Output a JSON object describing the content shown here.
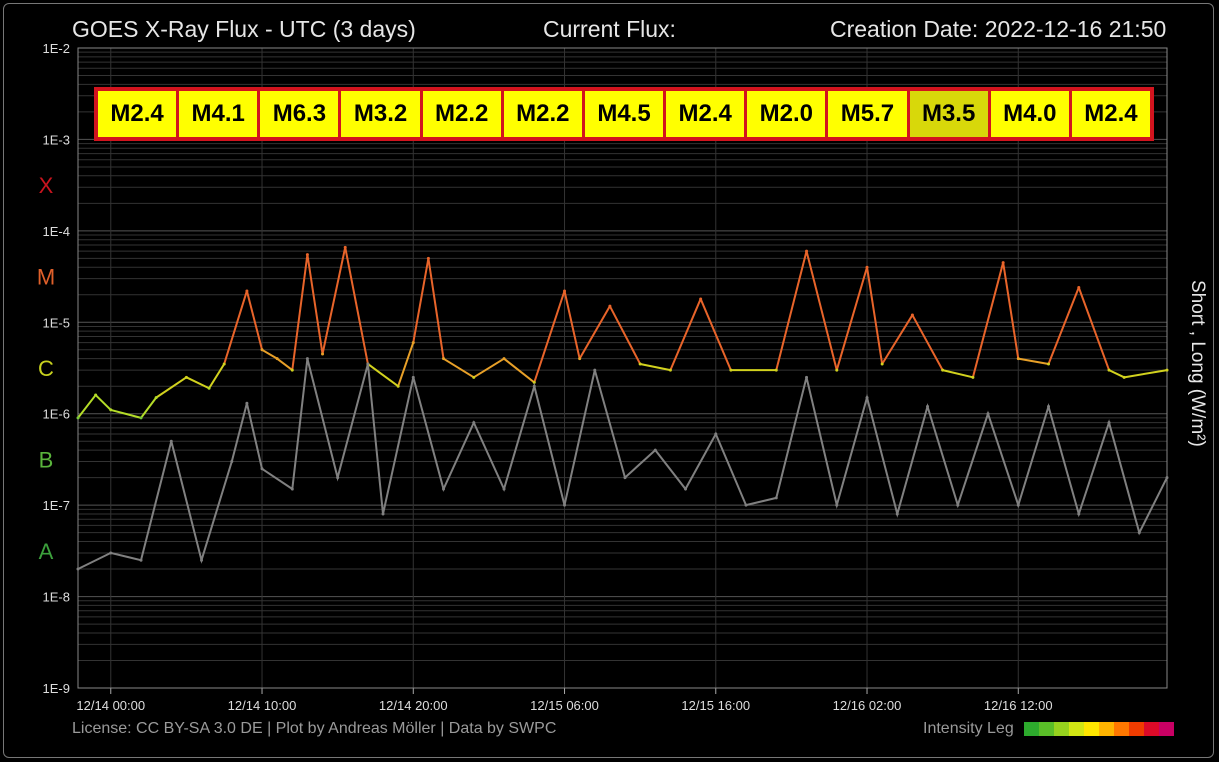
{
  "header": {
    "title": "GOES X-Ray Flux - UTC (3 days)",
    "current_flux_label": "Current Flux:",
    "creation_date": "Creation Date: 2022-12-16 21:50"
  },
  "footer": {
    "license": "License: CC BY-SA 3.0 DE | Plot by Andreas Möller | Data by SWPC",
    "intensity_legend_label": "Intensity Leg"
  },
  "y_axis_label": "Short , Long (W/m²)",
  "flares": [
    "M2.4",
    "M4.1",
    "M6.3",
    "M3.2",
    "M2.2",
    "M2.2",
    "M4.5",
    "M2.4",
    "M2.0",
    "M5.7",
    "M3.5",
    "M4.0",
    "M2.4"
  ],
  "highlighted_flare_index": 10,
  "colors": {
    "background": "#000000",
    "grid": "#444444",
    "short_channel": "#808080",
    "flare_box_border": "#d2141e",
    "flare_box_fill": "#ffff00",
    "class_X": "#c8141e",
    "class_M": "#e0602a",
    "class_C": "#c8d21e",
    "class_B": "#5ab43c",
    "class_A": "#3ca03c"
  },
  "intensity_legend_colors": [
    "#2daa2d",
    "#5abe28",
    "#96d21e",
    "#d2e614",
    "#ffe600",
    "#ffb400",
    "#ff7800",
    "#f03c00",
    "#dc0a28",
    "#c80064"
  ],
  "chart_data": {
    "type": "line",
    "x_ticks": [
      "12/14 00:00",
      "12/14 10:00",
      "12/14 20:00",
      "12/15 06:00",
      "12/15 16:00",
      "12/16 02:00",
      "12/16 12:00"
    ],
    "y_scale": "log",
    "y_ticks": [
      "1E-2",
      "1E-3",
      "1E-4",
      "1E-5",
      "1E-6",
      "1E-7",
      "1E-8",
      "1E-9"
    ],
    "ylim": [
      1e-09,
      0.01
    ],
    "flare_classes": [
      "X",
      "M",
      "C",
      "B",
      "A"
    ],
    "ylabel": "Short , Long (W/m²)",
    "grid": true,
    "series": [
      {
        "name": "Long",
        "x": [
          "12/13 21:50",
          "12/13 23:00",
          "12/14 00:00",
          "12/14 02:00",
          "12/14 03:00",
          "12/14 05:00",
          "12/14 06:30",
          "12/14 07:30",
          "12/14 09:00",
          "12/14 10:00",
          "12/14 11:00",
          "12/14 12:00",
          "12/14 13:00",
          "12/14 14:00",
          "12/14 15:30",
          "12/14 17:00",
          "12/14 19:00",
          "12/14 20:00",
          "12/14 21:00",
          "12/14 22:00",
          "12/15 00:00",
          "12/15 02:00",
          "12/15 04:00",
          "12/15 06:00",
          "12/15 07:00",
          "12/15 09:00",
          "12/15 11:00",
          "12/15 13:00",
          "12/15 15:00",
          "12/15 17:00",
          "12/15 20:00",
          "12/15 22:00",
          "12/16 00:00",
          "12/16 02:00",
          "12/16 03:00",
          "12/16 05:00",
          "12/16 07:00",
          "12/16 09:00",
          "12/16 11:00",
          "12/16 12:00",
          "12/16 14:00",
          "12/16 16:00",
          "12/16 18:00",
          "12/16 19:00",
          "12/16 21:50"
        ],
        "values": [
          9e-07,
          1.6e-06,
          1.1e-06,
          9e-07,
          1.5e-06,
          2.5e-06,
          1.9e-06,
          3.5e-06,
          2.2e-05,
          5e-06,
          4e-06,
          3e-06,
          5.5e-05,
          4.5e-06,
          6.6e-05,
          3.5e-06,
          2e-06,
          6e-06,
          5e-05,
          4e-06,
          2.5e-06,
          4e-06,
          2.2e-06,
          2.2e-05,
          4e-06,
          1.5e-05,
          3.5e-06,
          3e-06,
          1.8e-05,
          3e-06,
          3e-06,
          6e-05,
          3e-06,
          4e-05,
          3.5e-06,
          1.2e-05,
          3e-06,
          2.5e-06,
          4.5e-05,
          4e-06,
          3.5e-06,
          2.4e-05,
          3e-06,
          2.5e-06,
          3e-06
        ]
      },
      {
        "name": "Short",
        "x": [
          "12/13 21:50",
          "12/14 00:00",
          "12/14 02:00",
          "12/14 04:00",
          "12/14 06:00",
          "12/14 08:00",
          "12/14 09:00",
          "12/14 10:00",
          "12/14 12:00",
          "12/14 13:00",
          "12/14 15:00",
          "12/14 17:00",
          "12/14 18:00",
          "12/14 20:00",
          "12/14 22:00",
          "12/15 00:00",
          "12/15 02:00",
          "12/15 04:00",
          "12/15 06:00",
          "12/15 08:00",
          "12/15 10:00",
          "12/15 12:00",
          "12/15 14:00",
          "12/15 16:00",
          "12/15 18:00",
          "12/15 20:00",
          "12/15 22:00",
          "12/16 00:00",
          "12/16 02:00",
          "12/16 04:00",
          "12/16 06:00",
          "12/16 08:00",
          "12/16 10:00",
          "12/16 12:00",
          "12/16 14:00",
          "12/16 16:00",
          "12/16 18:00",
          "12/16 20:00",
          "12/16 21:50"
        ],
        "values": [
          2e-08,
          3e-08,
          2.5e-08,
          5e-07,
          2.5e-08,
          3e-07,
          1.3e-06,
          2.5e-07,
          1.5e-07,
          4e-06,
          2e-07,
          3.5e-06,
          8e-08,
          2.5e-06,
          1.5e-07,
          8e-07,
          1.5e-07,
          2e-06,
          1e-07,
          3e-06,
          2e-07,
          4e-07,
          1.5e-07,
          6e-07,
          1e-07,
          1.2e-07,
          2.5e-06,
          1e-07,
          1.5e-06,
          8e-08,
          1.2e-06,
          1e-07,
          1e-06,
          1e-07,
          1.2e-06,
          8e-08,
          8e-07,
          5e-08,
          2e-07
        ]
      }
    ]
  }
}
